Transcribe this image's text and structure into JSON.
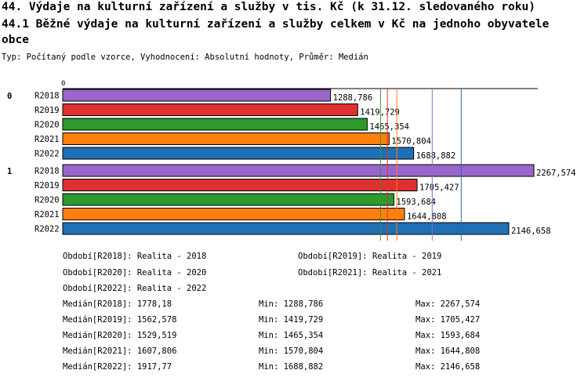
{
  "header": {
    "title": "44. Výdaje na kulturní zařízení a služby v tis. Kč (k 31.12. sledovaného roku)",
    "subtitle": "44.1 Běžné výdaje na kulturní zařízení a služby celkem v Kč na jednoho obyvatele obce",
    "type_line": "Typ: Počítaný podle vzorce, Vyhodnocení: Absolutní hodnoty, Průměr: Medián"
  },
  "chart_data": {
    "type": "bar",
    "orientation": "horizontal",
    "x_axis_zero_label": "0",
    "xlim": [
      0,
      2267.574
    ],
    "groups": [
      "0",
      "1"
    ],
    "categories": [
      "R2018",
      "R2019",
      "R2020",
      "R2021",
      "R2022"
    ],
    "series": [
      {
        "group": "0",
        "values": [
          1288.786,
          1419.729,
          1465.354,
          1570.804,
          1688.882
        ],
        "labels": [
          "1288,786",
          "1419,729",
          "1465,354",
          "1570,804",
          "1688,882"
        ]
      },
      {
        "group": "1",
        "values": [
          2267.574,
          1705.427,
          1593.684,
          1644.808,
          2146.658
        ],
        "labels": [
          "2267,574",
          "1705,427",
          "1593,684",
          "1644,808",
          "2146,658"
        ]
      }
    ],
    "colors": [
      "#9966cc",
      "#e03030",
      "#2e9a2e",
      "#ff7f0e",
      "#1f6fb5"
    ],
    "median_lines": [
      1778.18,
      1562.578,
      1529.519,
      1607.806,
      1917.77
    ]
  },
  "legend": {
    "periods": [
      "Období[R2018]: Realita - 2018",
      "Období[R2019]: Realita - 2019",
      "Období[R2020]: Realita - 2020",
      "Období[R2021]: Realita - 2021",
      "Období[R2022]: Realita - 2022"
    ],
    "stats": [
      {
        "median": "Medián[R2018]: 1778,18",
        "min": "Min: 1288,786",
        "max": "Max: 2267,574"
      },
      {
        "median": "Medián[R2019]: 1562,578",
        "min": "Min: 1419,729",
        "max": "Max: 1705,427"
      },
      {
        "median": "Medián[R2020]: 1529,519",
        "min": "Min: 1465,354",
        "max": "Max: 1593,684"
      },
      {
        "median": "Medián[R2021]: 1607,806",
        "min": "Min: 1570,804",
        "max": "Max: 1644,808"
      },
      {
        "median": "Medián[R2022]: 1917,77",
        "min": "Min: 1688,882",
        "max": "Max: 2146,658"
      }
    ]
  }
}
